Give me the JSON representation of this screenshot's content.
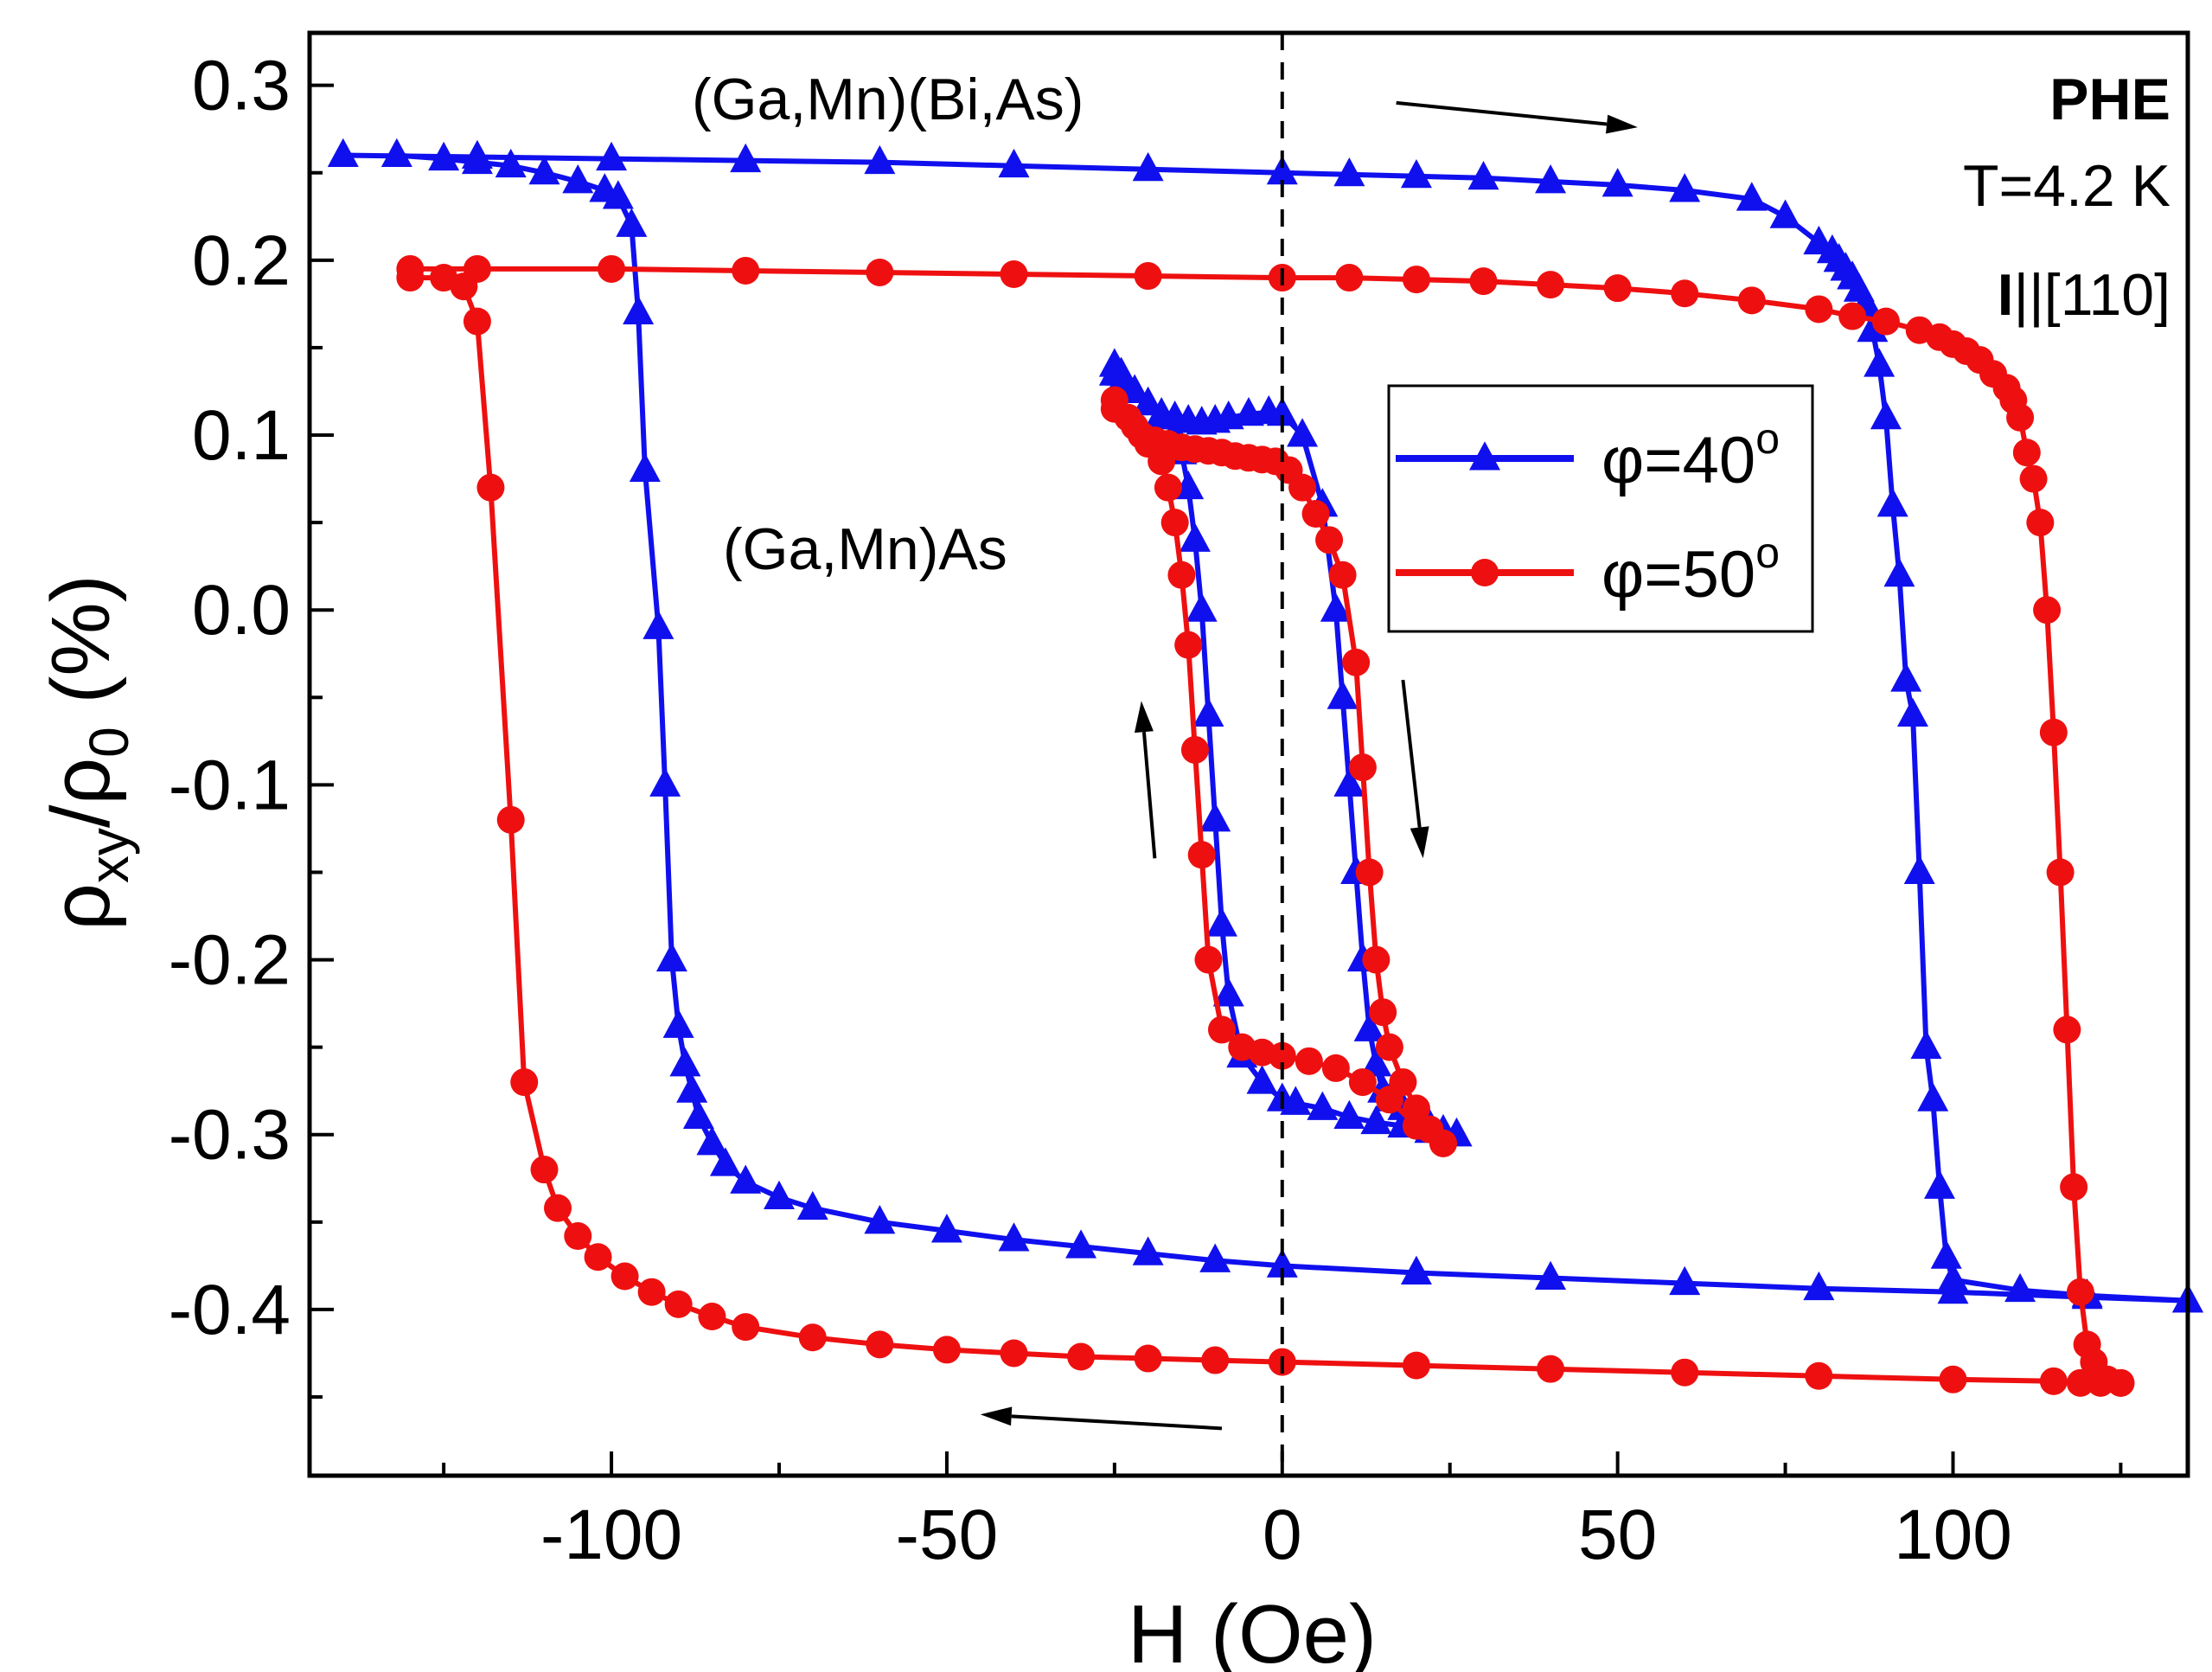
{
  "chart_data": {
    "type": "line",
    "xlabel": "H (Oe)",
    "ylabel": {
      "rho": "ρ",
      "sub1": "xy",
      "slash": "/",
      "rho2": "ρ",
      "sub2": "0",
      "unit": " (%)"
    },
    "xlim": [
      -145,
      135
    ],
    "ylim": [
      -0.495,
      0.33
    ],
    "xticks": [
      -100,
      -50,
      0,
      50,
      100
    ],
    "xtick_labels": [
      "-100",
      "-50",
      "0",
      "50",
      "100"
    ],
    "yticks": [
      -0.4,
      -0.3,
      -0.2,
      -0.1,
      0.0,
      0.1,
      0.2,
      0.3
    ],
    "ytick_labels": [
      "-0.4",
      "-0.3",
      "-0.2",
      "-0.1",
      "0.0",
      "0.1",
      "0.2",
      "0.3"
    ],
    "grid": false,
    "zero_line": {
      "x": 0,
      "style": "dashed"
    },
    "legend": {
      "placement": "inside-right",
      "entries": [
        {
          "label_main": "φ=40",
          "label_sup": "o",
          "color": "#1010ee",
          "marker": "triangle"
        },
        {
          "label_main": "φ=50",
          "label_sup": "o",
          "color": "#ee1010",
          "marker": "circle"
        }
      ]
    },
    "annotations": {
      "sample_top": "(Ga,Mn)(Bi,As)",
      "sample_inner": "(Ga,Mn)As",
      "phe": "PHE",
      "temperature": "T=4.2 K",
      "current_bold": "I",
      "current_rest": "||[110]"
    },
    "arrows": [
      {
        "from": [
          17,
          0.29
        ],
        "to": [
          53,
          0.276
        ]
      },
      {
        "from": [
          -9,
          -0.468
        ],
        "to": [
          -45,
          -0.46
        ]
      },
      {
        "from": [
          -19,
          -0.142
        ],
        "to": [
          -21,
          -0.052
        ]
      },
      {
        "from": [
          18,
          -0.04
        ],
        "to": [
          21,
          -0.142
        ]
      }
    ],
    "series": [
      {
        "name": "φ=40o (Ga,Mn)(Bi,As)",
        "color": "#1010ee",
        "marker": "triangle",
        "segments": [
          {
            "x": [
              -132,
              -125,
              -120,
              -115,
              -110,
              -105,
              -101,
              -99,
              -97,
              -96,
              -95,
              -93,
              -92,
              -91,
              -90,
              -89,
              -88,
              -87,
              -85,
              -83,
              -80,
              -75,
              -70,
              -60,
              -50,
              -40,
              -30,
              -20,
              -10,
              0,
              20,
              40,
              60,
              80,
              100,
              120,
              135
            ],
            "y": [
              0.26,
              0.258,
              0.256,
              0.254,
              0.25,
              0.245,
              0.24,
              0.236,
              0.22,
              0.17,
              0.08,
              -0.01,
              -0.1,
              -0.2,
              -0.238,
              -0.26,
              -0.275,
              -0.29,
              -0.305,
              -0.317,
              -0.327,
              -0.336,
              -0.342,
              -0.35,
              -0.355,
              -0.36,
              -0.364,
              -0.368,
              -0.372,
              -0.375,
              -0.379,
              -0.382,
              -0.385,
              -0.388,
              -0.39,
              -0.393,
              -0.395
            ]
          },
          {
            "x": [
              135,
              120,
              110,
              100,
              99,
              98,
              97,
              96,
              95,
              94,
              93,
              92,
              91,
              90,
              89,
              88,
              87,
              86,
              85,
              84,
              83,
              82,
              80,
              75,
              70,
              60,
              50,
              40,
              30,
              20,
              10,
              0,
              -20,
              -40,
              -60,
              -80,
              -100,
              -120,
              -140
            ],
            "y": [
              -0.395,
              -0.392,
              -0.389,
              -0.383,
              -0.37,
              -0.33,
              -0.28,
              -0.25,
              -0.15,
              -0.06,
              -0.04,
              0.02,
              0.06,
              0.11,
              0.14,
              0.16,
              0.175,
              0.183,
              0.19,
              0.195,
              0.2,
              0.205,
              0.21,
              0.225,
              0.235,
              0.24,
              0.243,
              0.245,
              0.247,
              0.248,
              0.249,
              0.25,
              0.252,
              0.254,
              0.256,
              0.257,
              0.258,
              0.259,
              0.26
            ]
          }
        ]
      },
      {
        "name": "φ=50o (Ga,Mn)(Bi,As)",
        "color": "#ee1010",
        "marker": "circle",
        "segments": [
          {
            "x": [
              -130,
              -125,
              -122,
              -120,
              -118,
              -115,
              -113,
              -110,
              -108,
              -105,
              -102,
              -98,
              -94,
              -90,
              -85,
              -80,
              -70,
              -60,
              -50,
              -40,
              -30,
              -20,
              -10,
              0,
              20,
              40,
              60,
              80,
              100,
              115,
              119,
              122,
              125
            ],
            "y": [
              0.19,
              0.19,
              0.185,
              0.165,
              0.07,
              -0.12,
              -0.27,
              -0.32,
              -0.342,
              -0.358,
              -0.37,
              -0.381,
              -0.39,
              -0.397,
              -0.404,
              -0.41,
              -0.416,
              -0.42,
              -0.423,
              -0.425,
              -0.427,
              -0.428,
              -0.429,
              -0.43,
              -0.432,
              -0.434,
              -0.436,
              -0.438,
              -0.44,
              -0.441,
              -0.442,
              -0.442,
              -0.442
            ]
          },
          {
            "x": [
              125,
              123,
              121,
              120,
              119,
              118,
              117,
              116,
              115,
              114,
              113,
              112,
              111,
              110,
              109,
              108,
              106,
              104,
              102,
              100,
              98,
              95,
              90,
              85,
              80,
              70,
              60,
              50,
              40,
              30,
              20,
              10,
              0,
              -20,
              -40,
              -60,
              -80,
              -100,
              -120,
              -130
            ],
            "y": [
              -0.442,
              -0.44,
              -0.43,
              -0.42,
              -0.39,
              -0.33,
              -0.24,
              -0.15,
              -0.07,
              0.0,
              0.05,
              0.075,
              0.09,
              0.11,
              0.12,
              0.127,
              0.135,
              0.143,
              0.148,
              0.152,
              0.156,
              0.16,
              0.165,
              0.168,
              0.172,
              0.177,
              0.181,
              0.184,
              0.186,
              0.188,
              0.189,
              0.19,
              0.19,
              0.191,
              0.192,
              0.193,
              0.194,
              0.195,
              0.195,
              0.195
            ]
          }
        ]
      },
      {
        "name": "φ=40o (Ga,Mn)As",
        "color": "#1010ee",
        "marker": "triangle",
        "segments": [
          {
            "x": [
              -25,
              -24,
              -22,
              -20,
              -18,
              -16,
              -14,
              -12,
              -10,
              -8,
              -5,
              -2,
              0,
              3,
              6,
              8,
              9,
              10,
              11,
              12,
              13,
              14,
              15,
              16,
              18,
              20,
              22,
              24,
              26
            ],
            "y": [
              0.14,
              0.135,
              0.125,
              0.118,
              0.112,
              0.11,
              0.108,
              0.107,
              0.108,
              0.11,
              0.112,
              0.113,
              0.112,
              0.1,
              0.06,
              0.0,
              -0.05,
              -0.1,
              -0.15,
              -0.2,
              -0.24,
              -0.26,
              -0.275,
              -0.28,
              -0.285,
              -0.29,
              -0.295,
              -0.298,
              -0.3
            ]
          },
          {
            "x": [
              26,
              22,
              18,
              14,
              10,
              6,
              2,
              0,
              -3,
              -6,
              -8,
              -9,
              -10,
              -11,
              -12,
              -13,
              -14,
              -15,
              -16,
              -18,
              -20,
              -22,
              -24,
              -25
            ],
            "y": [
              -0.3,
              -0.298,
              -0.295,
              -0.293,
              -0.29,
              -0.285,
              -0.282,
              -0.28,
              -0.27,
              -0.255,
              -0.22,
              -0.18,
              -0.12,
              -0.06,
              0.0,
              0.04,
              0.07,
              0.09,
              0.1,
              0.11,
              0.118,
              0.125,
              0.13,
              0.135
            ]
          }
        ]
      },
      {
        "name": "φ=50o (Ga,Mn)As",
        "color": "#ee1010",
        "marker": "circle",
        "segments": [
          {
            "x": [
              -25,
              -23,
              -21,
              -19,
              -17,
              -15,
              -13,
              -11,
              -9,
              -7,
              -5,
              -3,
              -1,
              1,
              3,
              5,
              7,
              9,
              11,
              12,
              13,
              14,
              15,
              16,
              18,
              20,
              22,
              24
            ],
            "y": [
              0.12,
              0.11,
              0.1,
              0.097,
              0.095,
              0.093,
              0.092,
              0.091,
              0.09,
              0.088,
              0.087,
              0.086,
              0.085,
              0.08,
              0.07,
              0.055,
              0.04,
              0.02,
              -0.03,
              -0.09,
              -0.15,
              -0.2,
              -0.23,
              -0.25,
              -0.27,
              -0.285,
              -0.297,
              -0.305
            ]
          },
          {
            "x": [
              24,
              20,
              16,
              12,
              8,
              4,
              0,
              -3,
              -6,
              -9,
              -11,
              -12,
              -13,
              -14,
              -15,
              -16,
              -17,
              -18,
              -20,
              -22,
              -25
            ],
            "y": [
              -0.305,
              -0.295,
              -0.28,
              -0.27,
              -0.262,
              -0.258,
              -0.255,
              -0.253,
              -0.25,
              -0.24,
              -0.2,
              -0.14,
              -0.08,
              -0.02,
              0.02,
              0.05,
              0.07,
              0.085,
              0.095,
              0.105,
              0.115
            ]
          }
        ]
      }
    ]
  }
}
